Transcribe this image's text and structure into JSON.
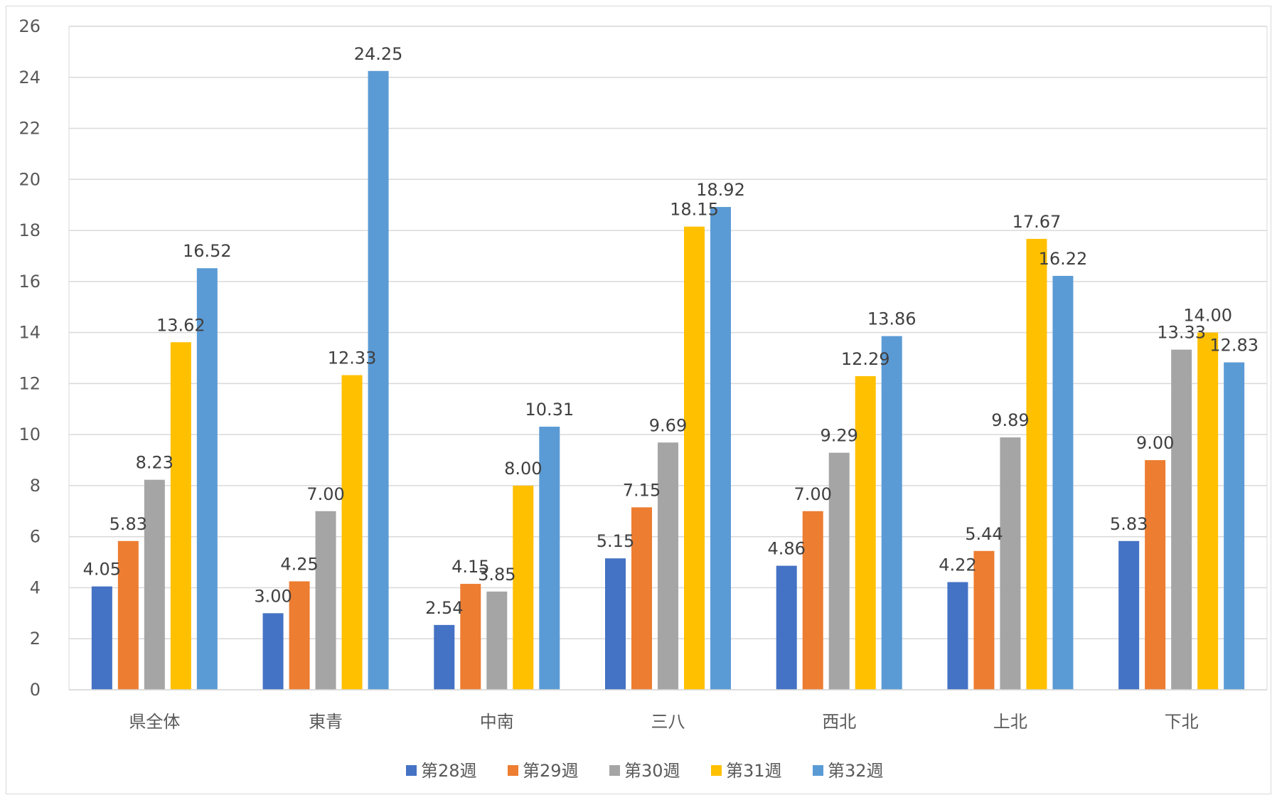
{
  "chart_data": {
    "type": "bar",
    "title": "",
    "xlabel": "",
    "ylabel": "",
    "ylim": [
      0,
      26
    ],
    "yticks": [
      0,
      2,
      4,
      6,
      8,
      10,
      12,
      14,
      16,
      18,
      20,
      22,
      24,
      26
    ],
    "grid": true,
    "legend_position": "bottom",
    "categories": [
      "県全体",
      "東青",
      "中南",
      "三八",
      "西北",
      "上北",
      "下北"
    ],
    "series": [
      {
        "name": "第28週",
        "color": "#4472c4",
        "values": [
          4.05,
          3.0,
          2.54,
          5.15,
          4.86,
          4.22,
          5.83
        ],
        "labels": [
          "4.05",
          "3.00",
          "2.54",
          "5.15",
          "4.86",
          "4.22",
          "5.83"
        ]
      },
      {
        "name": "第29週",
        "color": "#ed7d31",
        "values": [
          5.83,
          4.25,
          4.15,
          7.15,
          7.0,
          5.44,
          9.0
        ],
        "labels": [
          "5.83",
          "4.25",
          "4.15",
          "7.15",
          "7.00",
          "5.44",
          "9.00"
        ]
      },
      {
        "name": "第30週",
        "color": "#a5a5a5",
        "values": [
          8.23,
          7.0,
          3.85,
          9.69,
          9.29,
          9.89,
          13.33
        ],
        "labels": [
          "8.23",
          "7.00",
          "3.85",
          "9.69",
          "9.29",
          "9.89",
          "13.33"
        ]
      },
      {
        "name": "第31週",
        "color": "#ffc000",
        "values": [
          13.62,
          12.33,
          8.0,
          18.15,
          12.29,
          17.67,
          14.0
        ],
        "labels": [
          "13.62",
          "12.33",
          "8.00",
          "18.15",
          "12.29",
          "17.67",
          "14.00"
        ]
      },
      {
        "name": "第32週",
        "color": "#5b9bd5",
        "values": [
          16.52,
          24.25,
          10.31,
          18.92,
          13.86,
          16.22,
          12.83
        ],
        "labels": [
          "16.52",
          "24.25",
          "10.31",
          "18.92",
          "13.86",
          "16.22",
          "12.83"
        ]
      }
    ]
  }
}
